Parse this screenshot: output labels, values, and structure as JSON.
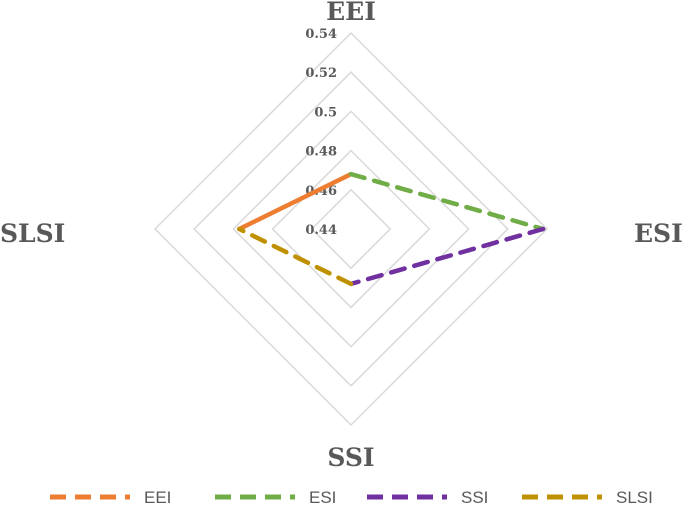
{
  "chart_data": {
    "type": "radar",
    "axes": [
      "EEI",
      "ESI",
      "SSI",
      "SLSI"
    ],
    "rlim": [
      0.44,
      0.54
    ],
    "ticks": [
      0.44,
      0.46,
      0.48,
      0.5,
      0.52,
      0.54
    ],
    "tick_labels": [
      "0.44",
      "0.46",
      "0.48",
      "0.5",
      "0.52",
      "0.54"
    ],
    "grid": true,
    "legend_position": "bottom",
    "series": [
      {
        "name": "EEI",
        "from": "EEI",
        "to": "SLSI",
        "values": {
          "EEI": 0.468,
          "SLSI": 0.497
        },
        "color": "#ED7D31",
        "dash": "solid"
      },
      {
        "name": "ESI",
        "from": "EEI",
        "to": "ESI",
        "values": {
          "EEI": 0.468,
          "ESI": 0.538
        },
        "color": "#70AD47",
        "dash": "dashed"
      },
      {
        "name": "SSI",
        "from": "ESI",
        "to": "SSI",
        "values": {
          "ESI": 0.538,
          "SSI": 0.468
        },
        "color": "#7030A0",
        "dash": "dashed"
      },
      {
        "name": "SLSI",
        "from": "SSI",
        "to": "SLSI",
        "values": {
          "SSI": 0.468,
          "SLSI": 0.497
        },
        "color": "#BF9000",
        "dash": "dashed"
      }
    ],
    "legend": [
      {
        "name": "EEI",
        "color": "#ED7D31"
      },
      {
        "name": "ESI",
        "color": "#70AD47"
      },
      {
        "name": "SSI",
        "color": "#7030A0"
      },
      {
        "name": "SLSI",
        "color": "#BF9000"
      }
    ]
  }
}
